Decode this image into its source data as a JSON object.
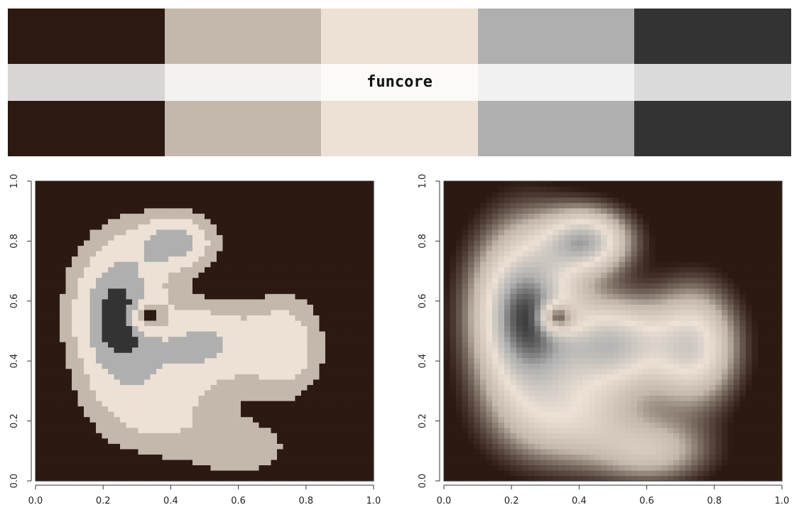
{
  "palette": {
    "name": "funcore",
    "colors": [
      "#2c1912",
      "#c3b8ab",
      "#ece1d4",
      "#afafaf",
      "#333333"
    ]
  },
  "chart_data": [
    {
      "type": "heatmap",
      "variant": "discrete",
      "title": "",
      "xlabel": "",
      "ylabel": "",
      "xlim": [
        0,
        1
      ],
      "ylim": [
        0,
        1
      ],
      "xticks": [
        "0.0",
        "0.2",
        "0.4",
        "0.6",
        "0.8",
        "1.0"
      ],
      "yticks": [
        "0.0",
        "0.2",
        "0.4",
        "0.6",
        "0.8",
        "1.0"
      ],
      "legend": "none",
      "grid": false,
      "levels": [
        "#2c1912",
        "#c3b8ab",
        "#ece1d4",
        "#afafaf",
        "#333333"
      ]
    },
    {
      "type": "heatmap",
      "variant": "continuous",
      "title": "",
      "xlabel": "",
      "ylabel": "",
      "xlim": [
        0,
        1
      ],
      "ylim": [
        0,
        1
      ],
      "xticks": [
        "0.0",
        "0.2",
        "0.4",
        "0.6",
        "0.8",
        "1.0"
      ],
      "yticks": [
        "0.0",
        "0.2",
        "0.4",
        "0.6",
        "0.8",
        "1.0"
      ],
      "legend": "none",
      "grid": false,
      "levels": [
        "#2c1912",
        "#c3b8ab",
        "#ece1d4",
        "#afafaf",
        "#333333"
      ]
    }
  ]
}
